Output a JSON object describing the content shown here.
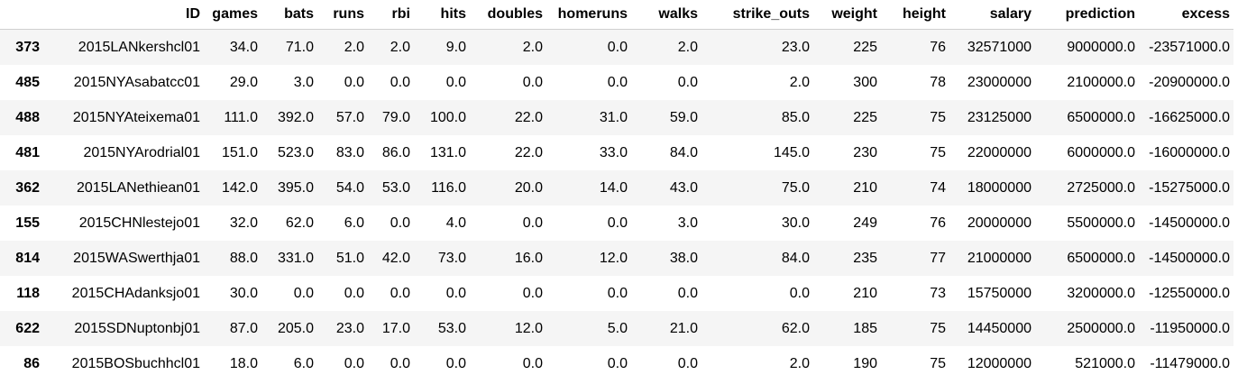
{
  "table": {
    "index_header": "",
    "columns": [
      "ID",
      "games",
      "bats",
      "runs",
      "rbi",
      "hits",
      "doubles",
      "homeruns",
      "walks",
      "strike_outs",
      "weight",
      "height",
      "salary",
      "prediction",
      "excess"
    ],
    "rows": [
      {
        "index": "373",
        "cells": [
          "2015LANkershcl01",
          "34.0",
          "71.0",
          "2.0",
          "2.0",
          "9.0",
          "2.0",
          "0.0",
          "2.0",
          "23.0",
          "225",
          "76",
          "32571000",
          "9000000.0",
          "-23571000.0"
        ]
      },
      {
        "index": "485",
        "cells": [
          "2015NYAsabatcc01",
          "29.0",
          "3.0",
          "0.0",
          "0.0",
          "0.0",
          "0.0",
          "0.0",
          "0.0",
          "2.0",
          "300",
          "78",
          "23000000",
          "2100000.0",
          "-20900000.0"
        ]
      },
      {
        "index": "488",
        "cells": [
          "2015NYAteixema01",
          "111.0",
          "392.0",
          "57.0",
          "79.0",
          "100.0",
          "22.0",
          "31.0",
          "59.0",
          "85.0",
          "225",
          "75",
          "23125000",
          "6500000.0",
          "-16625000.0"
        ]
      },
      {
        "index": "481",
        "cells": [
          "2015NYArodrial01",
          "151.0",
          "523.0",
          "83.0",
          "86.0",
          "131.0",
          "22.0",
          "33.0",
          "84.0",
          "145.0",
          "230",
          "75",
          "22000000",
          "6000000.0",
          "-16000000.0"
        ]
      },
      {
        "index": "362",
        "cells": [
          "2015LANethiean01",
          "142.0",
          "395.0",
          "54.0",
          "53.0",
          "116.0",
          "20.0",
          "14.0",
          "43.0",
          "75.0",
          "210",
          "74",
          "18000000",
          "2725000.0",
          "-15275000.0"
        ]
      },
      {
        "index": "155",
        "cells": [
          "2015CHNlestejo01",
          "32.0",
          "62.0",
          "6.0",
          "0.0",
          "4.0",
          "0.0",
          "0.0",
          "3.0",
          "30.0",
          "249",
          "76",
          "20000000",
          "5500000.0",
          "-14500000.0"
        ]
      },
      {
        "index": "814",
        "cells": [
          "2015WASwerthja01",
          "88.0",
          "331.0",
          "51.0",
          "42.0",
          "73.0",
          "16.0",
          "12.0",
          "38.0",
          "84.0",
          "235",
          "77",
          "21000000",
          "6500000.0",
          "-14500000.0"
        ]
      },
      {
        "index": "118",
        "cells": [
          "2015CHAdanksjo01",
          "30.0",
          "0.0",
          "0.0",
          "0.0",
          "0.0",
          "0.0",
          "0.0",
          "0.0",
          "0.0",
          "210",
          "73",
          "15750000",
          "3200000.0",
          "-12550000.0"
        ]
      },
      {
        "index": "622",
        "cells": [
          "2015SDNuptonbj01",
          "87.0",
          "205.0",
          "23.0",
          "17.0",
          "53.0",
          "12.0",
          "5.0",
          "21.0",
          "62.0",
          "185",
          "75",
          "14450000",
          "2500000.0",
          "-11950000.0"
        ]
      },
      {
        "index": "86",
        "cells": [
          "2015BOSbuchhcl01",
          "18.0",
          "6.0",
          "0.0",
          "0.0",
          "0.0",
          "0.0",
          "0.0",
          "0.0",
          "2.0",
          "190",
          "75",
          "12000000",
          "521000.0",
          "-11479000.0"
        ]
      }
    ]
  }
}
